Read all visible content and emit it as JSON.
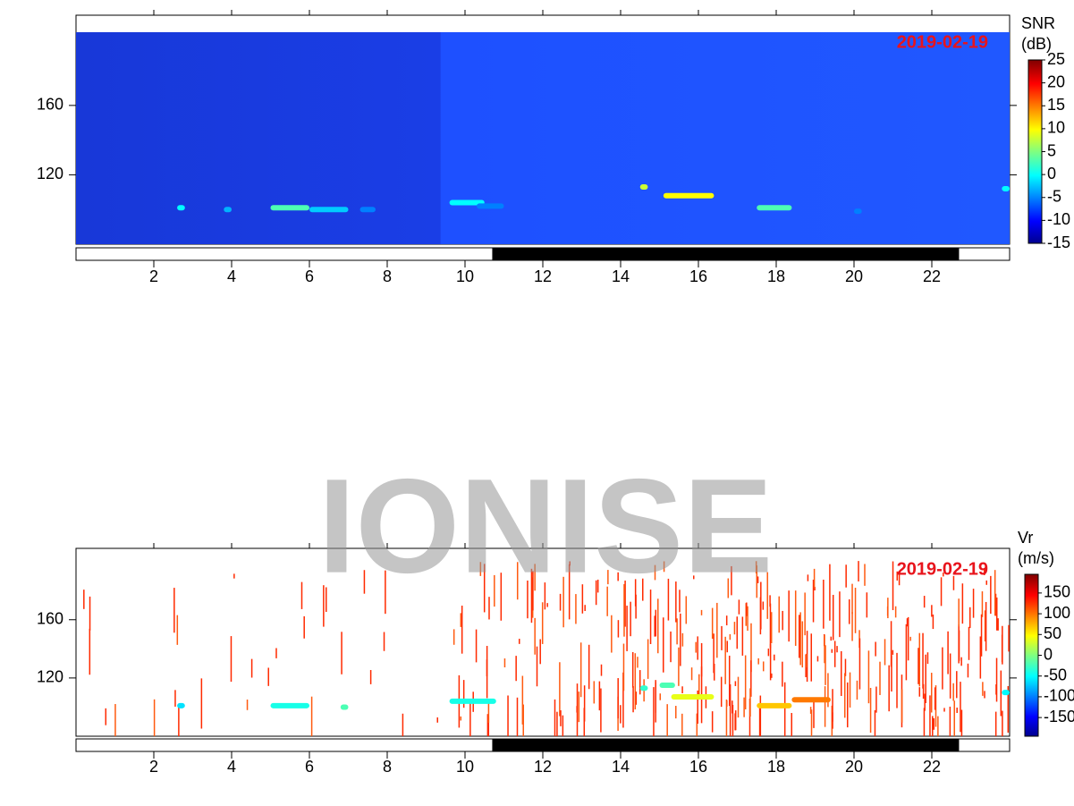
{
  "watermark": "IONISE",
  "chart_data": [
    {
      "type": "heatmap",
      "date": "2019-02-19",
      "colorbar_label": [
        "SNR",
        "(dB)"
      ],
      "clim": [
        -15,
        25
      ],
      "cticks": [
        -15,
        -10,
        -5,
        0,
        5,
        10,
        15,
        20,
        25
      ],
      "xlim": [
        0,
        24
      ],
      "xticks": [
        2,
        4,
        6,
        8,
        10,
        12,
        14,
        16,
        18,
        20,
        22
      ],
      "ylim": [
        80,
        212
      ],
      "yticks": [
        120,
        160
      ],
      "night": [
        10.7,
        22.7
      ],
      "echoes": [
        {
          "x": [
            2.6,
            2.8
          ],
          "y": 101,
          "value": 0
        },
        {
          "x": [
            3.8,
            4.0
          ],
          "y": 100,
          "value": -3
        },
        {
          "x": [
            5.0,
            6.0
          ],
          "y": 101,
          "value": 3
        },
        {
          "x": [
            6.0,
            7.0
          ],
          "y": 100,
          "value": -2
        },
        {
          "x": [
            7.3,
            7.7
          ],
          "y": 100,
          "value": -5
        },
        {
          "x": [
            9.6,
            10.5
          ],
          "y": 104,
          "value": 0
        },
        {
          "x": [
            10.3,
            11.0
          ],
          "y": 102,
          "value": -5
        },
        {
          "x": [
            14.5,
            14.7
          ],
          "y": 113,
          "value": 8
        },
        {
          "x": [
            15.1,
            16.4
          ],
          "y": 108,
          "value": 10
        },
        {
          "x": [
            17.5,
            18.4
          ],
          "y": 101,
          "value": 3
        },
        {
          "x": [
            20.0,
            20.2
          ],
          "y": 99,
          "value": -5
        },
        {
          "x": [
            23.8,
            24.0
          ],
          "y": 112,
          "value": 0
        }
      ]
    },
    {
      "type": "heatmap",
      "date": "2019-02-19",
      "colorbar_label": [
        "Vr",
        "(m/s)"
      ],
      "clim": [
        -195,
        195
      ],
      "cticks": [
        -150,
        -100,
        -50,
        0,
        50,
        100,
        150
      ],
      "xlim": [
        0,
        24
      ],
      "xticks": [
        2,
        4,
        6,
        8,
        10,
        12,
        14,
        16,
        18,
        20,
        22
      ],
      "ylim": [
        80,
        209
      ],
      "yticks": [
        120,
        160
      ],
      "night": [
        10.7,
        22.7
      ],
      "echoes": [
        {
          "x": [
            2.6,
            2.8
          ],
          "y": 101,
          "value": -60
        },
        {
          "x": [
            5.0,
            6.0
          ],
          "y": 101,
          "value": -40
        },
        {
          "x": [
            6.8,
            7.0
          ],
          "y": 100,
          "value": -20
        },
        {
          "x": [
            9.6,
            10.8
          ],
          "y": 104,
          "value": -40
        },
        {
          "x": [
            14.5,
            14.7
          ],
          "y": 113,
          "value": -30
        },
        {
          "x": [
            15.0,
            15.4
          ],
          "y": 115,
          "value": -20
        },
        {
          "x": [
            15.3,
            16.4
          ],
          "y": 107,
          "value": 40
        },
        {
          "x": [
            17.5,
            18.4
          ],
          "y": 101,
          "value": 70
        },
        {
          "x": [
            18.4,
            19.4
          ],
          "y": 105,
          "value": 100
        },
        {
          "x": [
            23.8,
            24.0
          ],
          "y": 110,
          "value": -50
        }
      ]
    }
  ]
}
